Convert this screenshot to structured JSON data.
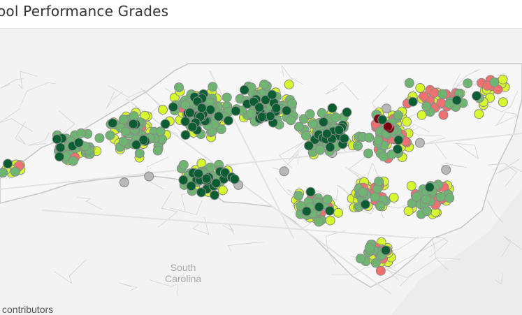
{
  "title": "ool Performance Grades",
  "map": {
    "attribution": "contributors",
    "region_labels": [
      {
        "line1": "South",
        "line2": "Carolina"
      }
    ],
    "colors": {
      "water": "#ececec",
      "land_outside": "#f3f3f3",
      "land_nc": "#f6f6f6",
      "county_lines": "#d3d3d3",
      "state_border": "#c4c4c4",
      "marker_stroke": "#8a8a8a"
    },
    "grade_colors": {
      "A": "#0b5e32",
      "B": "#6fb572",
      "C": "#d7fa2e",
      "D": "#f07070",
      "F": "#7a0010",
      "none": "#b8b8b8"
    }
  }
}
